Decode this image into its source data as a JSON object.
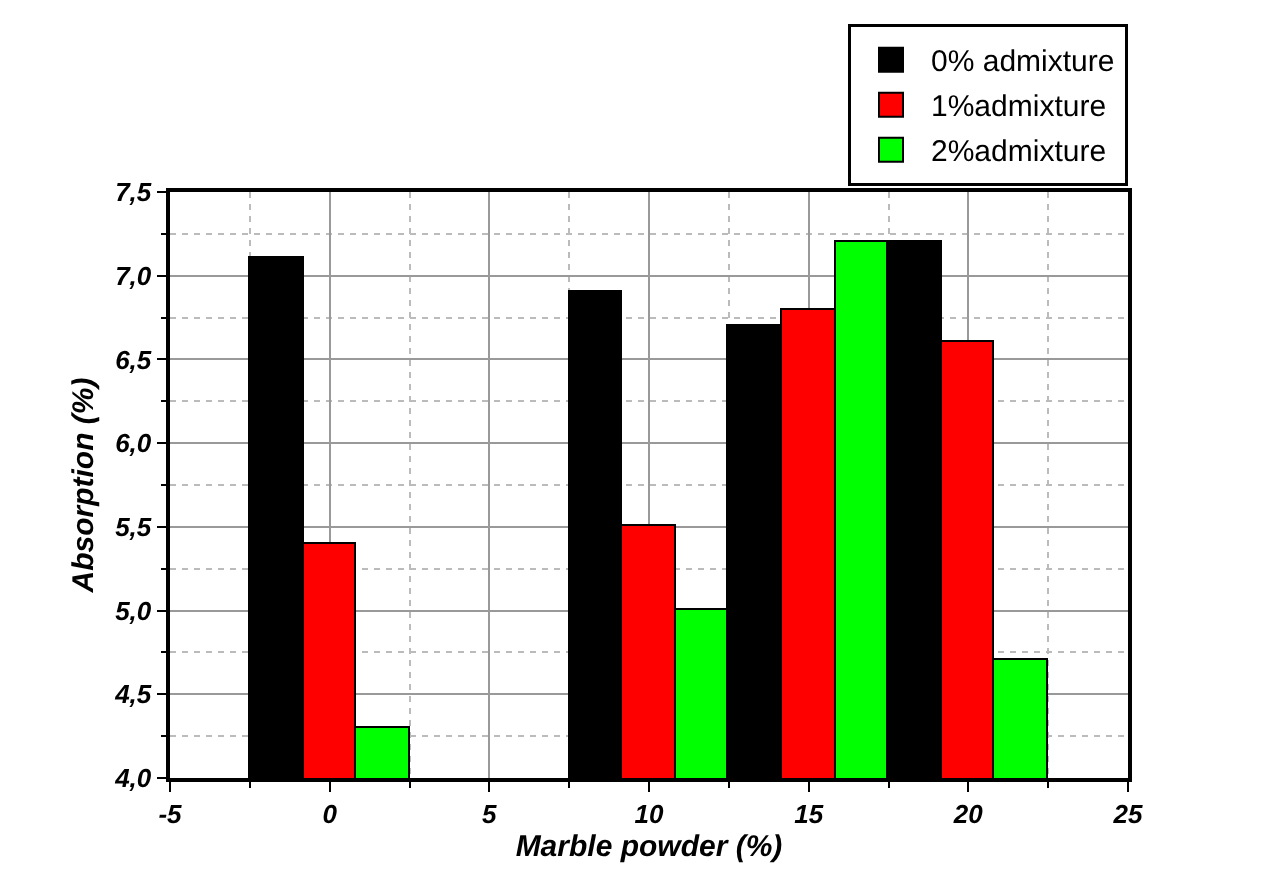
{
  "chart_data": {
    "type": "bar",
    "xlabel": "Marble powder (%)",
    "ylabel": "Absorption (%)",
    "x": [
      0,
      10,
      15,
      20
    ],
    "series": [
      {
        "name": "0% admixture",
        "color": "#000000",
        "values": [
          7.1,
          6.9,
          6.7,
          7.2
        ]
      },
      {
        "name": "1%admixture",
        "color": "#ff0000",
        "values": [
          5.4,
          5.5,
          6.8,
          6.6
        ]
      },
      {
        "name": "2%admixture",
        "color": "#00ff00",
        "values": [
          4.3,
          5.0,
          7.2,
          4.7
        ]
      }
    ],
    "xlim": [
      -5,
      25
    ],
    "xticks": [
      -5,
      0,
      5,
      10,
      15,
      20,
      25
    ],
    "ylim": [
      4,
      7.5
    ],
    "yticks": [
      {
        "value": 4,
        "label": "4,0"
      },
      {
        "value": 4.5,
        "label": "4,5"
      },
      {
        "value": 5,
        "label": "5,0"
      },
      {
        "value": 5.5,
        "label": "5,5"
      },
      {
        "value": 6,
        "label": "6,0"
      },
      {
        "value": 6.5,
        "label": "6,5"
      },
      {
        "value": 7,
        "label": "7,0"
      },
      {
        "value": 7.5,
        "label": "7,5"
      }
    ],
    "grid": true,
    "legend": "top right"
  }
}
